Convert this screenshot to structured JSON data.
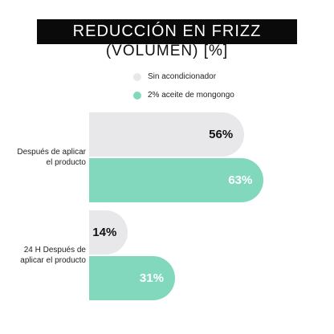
{
  "chart_data": {
    "type": "bar",
    "orientation": "horizontal",
    "title": "REDUCCIÓN EN FRIZZ",
    "subtitle": "(VOLUMEN) [%]",
    "categories": [
      "Después de aplicar el producto",
      "24 H Después de aplicar el producto"
    ],
    "category_lines": [
      [
        "Después de aplicar",
        "el producto"
      ],
      [
        "24 H Después de",
        "aplicar el producto"
      ]
    ],
    "series": [
      {
        "name": "Sin acondicionador",
        "values": [
          56,
          14
        ],
        "labels": [
          "56%",
          "14%"
        ],
        "color": "#e8e7ea",
        "label_color": "#111111"
      },
      {
        "name": "2% aceite de mongongo",
        "values": [
          63,
          31
        ],
        "labels": [
          "63%",
          "31%"
        ],
        "color": "#82d8bd",
        "label_color": "#ffffff"
      }
    ],
    "legend": "top"
  }
}
